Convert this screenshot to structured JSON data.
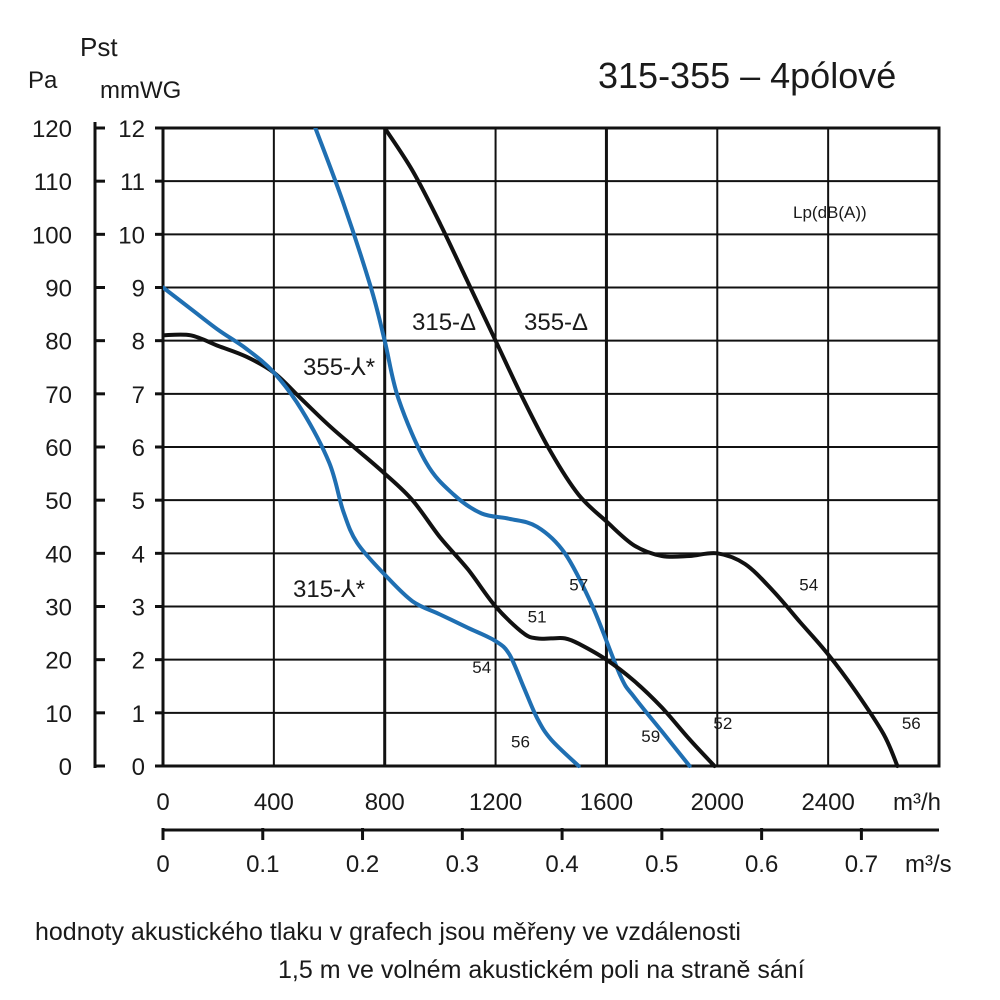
{
  "title": "315-355 – 4pólové",
  "left_axes": {
    "pa_unit": "Pa",
    "pst_label": "Pst",
    "mmwg_unit": "mmWG"
  },
  "ticks": {
    "pa": [
      "0",
      "10",
      "20",
      "30",
      "40",
      "50",
      "60",
      "70",
      "80",
      "90",
      "100",
      "110",
      "120"
    ],
    "mmwg": [
      "0",
      "1",
      "2",
      "3",
      "4",
      "5",
      "6",
      "7",
      "8",
      "9",
      "10",
      "11",
      "12"
    ],
    "m3h": [
      "0",
      "400",
      "800",
      "1200",
      "1600",
      "2000",
      "2400"
    ],
    "m3h_unit": "m³/h",
    "m3s": [
      "0",
      "0.1",
      "0.2",
      "0.3",
      "0.4",
      "0.5",
      "0.6",
      "0.7"
    ],
    "m3s_unit": "m³/s"
  },
  "lp_label": "Lp(dB(A))",
  "note_line1": "hodnoty akustického tlaku v grafech jsou měřeny ve vzdálenosti",
  "note_line2": "1,5 m ve volném akustickém poli na straně sání",
  "colors": {
    "black_curve": "#111111",
    "blue_curve": "#1f6fb2",
    "grid": "#111111"
  },
  "chart_data": {
    "type": "line",
    "title": "315-355 – 4pólové",
    "xlabel": "m³/h",
    "ylabel": "Pst",
    "xlim": [
      0,
      2800
    ],
    "ylim_pa": [
      0,
      120
    ],
    "ylim_mmwg": [
      0,
      12
    ],
    "secondary_x": {
      "unit": "m³/s",
      "range": [
        0,
        0.78
      ]
    },
    "grid": true,
    "series": [
      {
        "name": "355-Δ",
        "color": "black",
        "points": [
          [
            800,
            120
          ],
          [
            900,
            112
          ],
          [
            1000,
            102
          ],
          [
            1100,
            91
          ],
          [
            1200,
            80
          ],
          [
            1300,
            69
          ],
          [
            1400,
            59
          ],
          [
            1500,
            51
          ],
          [
            1600,
            46
          ],
          [
            1700,
            41.5
          ],
          [
            1800,
            39.5
          ],
          [
            1900,
            39.5
          ],
          [
            2000,
            40
          ],
          [
            2100,
            38
          ],
          [
            2200,
            33
          ],
          [
            2300,
            27
          ],
          [
            2400,
            21
          ],
          [
            2500,
            14
          ],
          [
            2600,
            6
          ],
          [
            2650,
            0
          ]
        ],
        "lp_labels": [
          {
            "text": "54",
            "x": 2330,
            "y": 33
          },
          {
            "text": "56",
            "x": 2700,
            "y": 7
          }
        ]
      },
      {
        "name": "315-Δ",
        "color": "blue",
        "points": [
          [
            550,
            120
          ],
          [
            650,
            106
          ],
          [
            750,
            90
          ],
          [
            800,
            80
          ],
          [
            850,
            69
          ],
          [
            950,
            57
          ],
          [
            1050,
            51
          ],
          [
            1150,
            47.5
          ],
          [
            1250,
            46.5
          ],
          [
            1350,
            45
          ],
          [
            1450,
            40
          ],
          [
            1550,
            30
          ],
          [
            1650,
            17
          ],
          [
            1700,
            13
          ],
          [
            1800,
            6.5
          ],
          [
            1900,
            0
          ]
        ],
        "lp_labels": [
          {
            "text": "57",
            "x": 1500,
            "y": 33
          },
          {
            "text": "59",
            "x": 1760,
            "y": 4.5
          }
        ]
      },
      {
        "name": "355-⅄*",
        "color": "black",
        "points": [
          [
            0,
            81
          ],
          [
            100,
            81
          ],
          [
            200,
            79
          ],
          [
            300,
            77
          ],
          [
            400,
            74
          ],
          [
            500,
            69
          ],
          [
            600,
            64
          ],
          [
            700,
            59.5
          ],
          [
            800,
            55
          ],
          [
            900,
            50
          ],
          [
            1000,
            43
          ],
          [
            1100,
            37
          ],
          [
            1200,
            30
          ],
          [
            1300,
            25
          ],
          [
            1350,
            24
          ],
          [
            1400,
            24
          ],
          [
            1450,
            24
          ],
          [
            1500,
            23
          ],
          [
            1600,
            20
          ],
          [
            1700,
            16
          ],
          [
            1800,
            11
          ],
          [
            1900,
            5
          ],
          [
            1990,
            0
          ]
        ],
        "lp_labels": [
          {
            "text": "51",
            "x": 1350,
            "y": 27
          },
          {
            "text": "52",
            "x": 2020,
            "y": 7
          }
        ]
      },
      {
        "name": "315-⅄*",
        "color": "blue",
        "points": [
          [
            0,
            90
          ],
          [
            100,
            86
          ],
          [
            200,
            82
          ],
          [
            300,
            78.5
          ],
          [
            400,
            74
          ],
          [
            500,
            67
          ],
          [
            600,
            57
          ],
          [
            650,
            48
          ],
          [
            700,
            42
          ],
          [
            800,
            36
          ],
          [
            900,
            31
          ],
          [
            1000,
            28.5
          ],
          [
            1100,
            26
          ],
          [
            1200,
            23.5
          ],
          [
            1250,
            21
          ],
          [
            1300,
            15
          ],
          [
            1350,
            9
          ],
          [
            1400,
            5
          ],
          [
            1500,
            0
          ]
        ],
        "lp_labels": [
          {
            "text": "54",
            "x": 1150,
            "y": 17.5
          },
          {
            "text": "56",
            "x": 1290,
            "y": 3.5
          }
        ]
      }
    ]
  }
}
